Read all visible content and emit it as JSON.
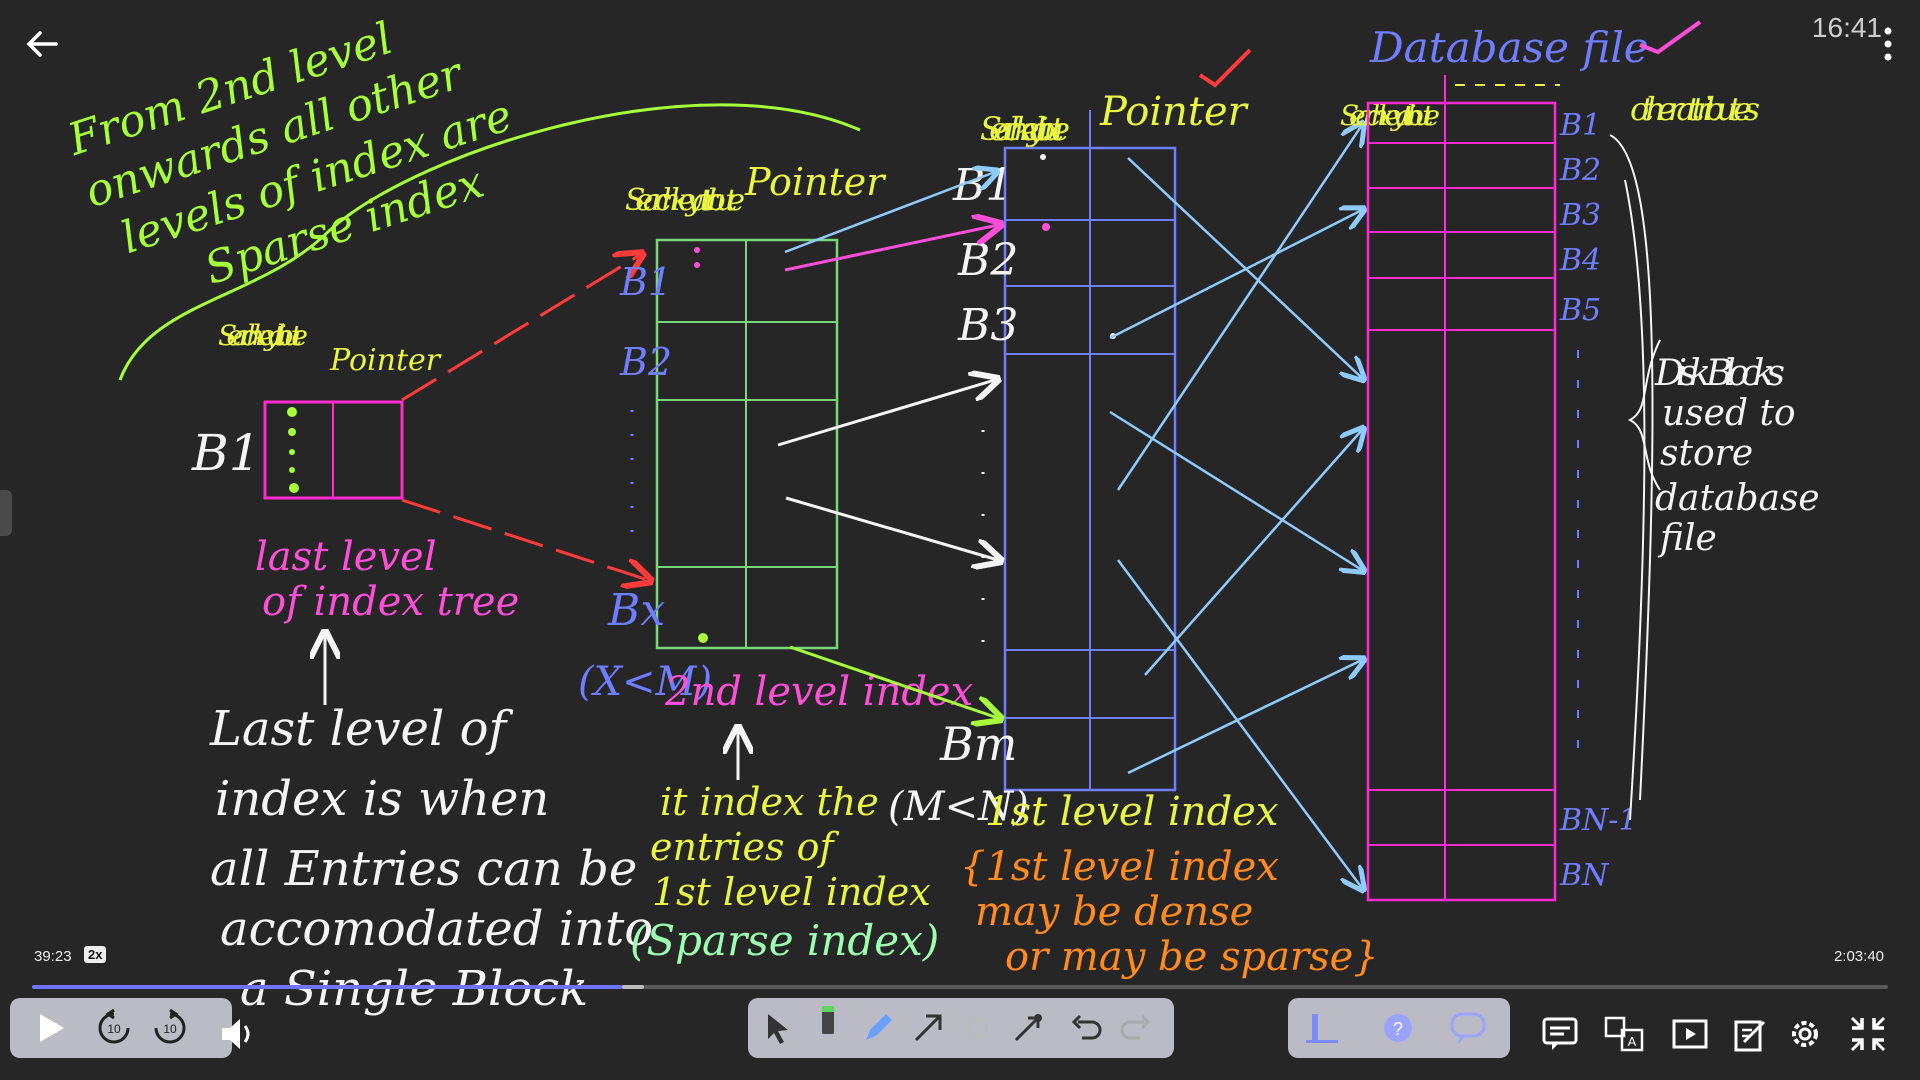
{
  "player": {
    "clock": "16:41",
    "current_time": "39:23",
    "speed": "2x",
    "total_time": "2:03:40",
    "progress": 0.318,
    "buffered": 0.33
  },
  "controls": {
    "left": [
      "play-icon",
      "rewind-10-icon",
      "forward-10-icon",
      "volume-icon"
    ],
    "rewind_label": "10",
    "forward_label": "10",
    "annotation_tools": [
      "pointer-icon",
      "highlighter-icon",
      "pen-icon",
      "arrow-icon",
      "eraser-icon",
      "laser-icon",
      "undo-icon",
      "redo-icon"
    ],
    "extra_tools": [
      "poll-icon",
      "question-icon",
      "chat-bubble-icon"
    ],
    "right": [
      "comments-icon",
      "translate-icon",
      "picture-in-picture-icon",
      "notes-icon",
      "settings-icon",
      "exit-fullscreen-icon"
    ]
  },
  "colors": {
    "board": "#262626",
    "green": "#a6ff3a",
    "yellow": "#e8f542",
    "pink": "#ff4fd8",
    "magenta": "#ff2bd0",
    "blue": "#6f7dff",
    "light_blue": "#8ecbff",
    "red": "#ff3b3b",
    "orange": "#ff8a1e",
    "white": "#f4f4f4",
    "mint": "#9cffb0",
    "progress": "#6f74ff"
  },
  "board": {
    "top_note": [
      "From 2nd level",
      "onwards all other",
      "levels of index are",
      "Sparse index"
    ],
    "box1": {
      "header1": "Search key attribute",
      "header2": "Pointer",
      "label": "B1"
    },
    "box1_caption": [
      "last level",
      "of index tree"
    ],
    "bottom_note": [
      "Last level of",
      "index is when",
      "all Entries can be",
      "accomodated into",
      "a Single Block"
    ],
    "box2": {
      "header1": "Search key attribute",
      "header2": "Pointer",
      "b1": "B1",
      "b2": "B2",
      "bx": "Bx"
    },
    "box2_caption_blue": "(X<M)",
    "box2_caption": "2nd level index",
    "box2_note": [
      "it index the",
      "entries of",
      "1st level index"
    ],
    "box2_note_sparse": "(Sparse index)",
    "box3": {
      "header1": "Search key attribute",
      "header2": "Pointer",
      "b1": "B1",
      "b2": "B2",
      "b3": "B3",
      "bm": "Bm"
    },
    "box3_caption_white": "(M<N)",
    "box3_caption": "1st level index",
    "box3_note": [
      "{1st level index",
      "may be dense",
      "or may be sparse}"
    ],
    "db": {
      "title": "Database file",
      "header1": "Search key attribute",
      "header2": "other attributes",
      "blocks": [
        "B1",
        "B2",
        "B3",
        "B4",
        "B5",
        "BN-1",
        "BN"
      ]
    },
    "disk_note": [
      "Disk Blocks",
      "used to",
      "store",
      "database",
      "file"
    ]
  }
}
